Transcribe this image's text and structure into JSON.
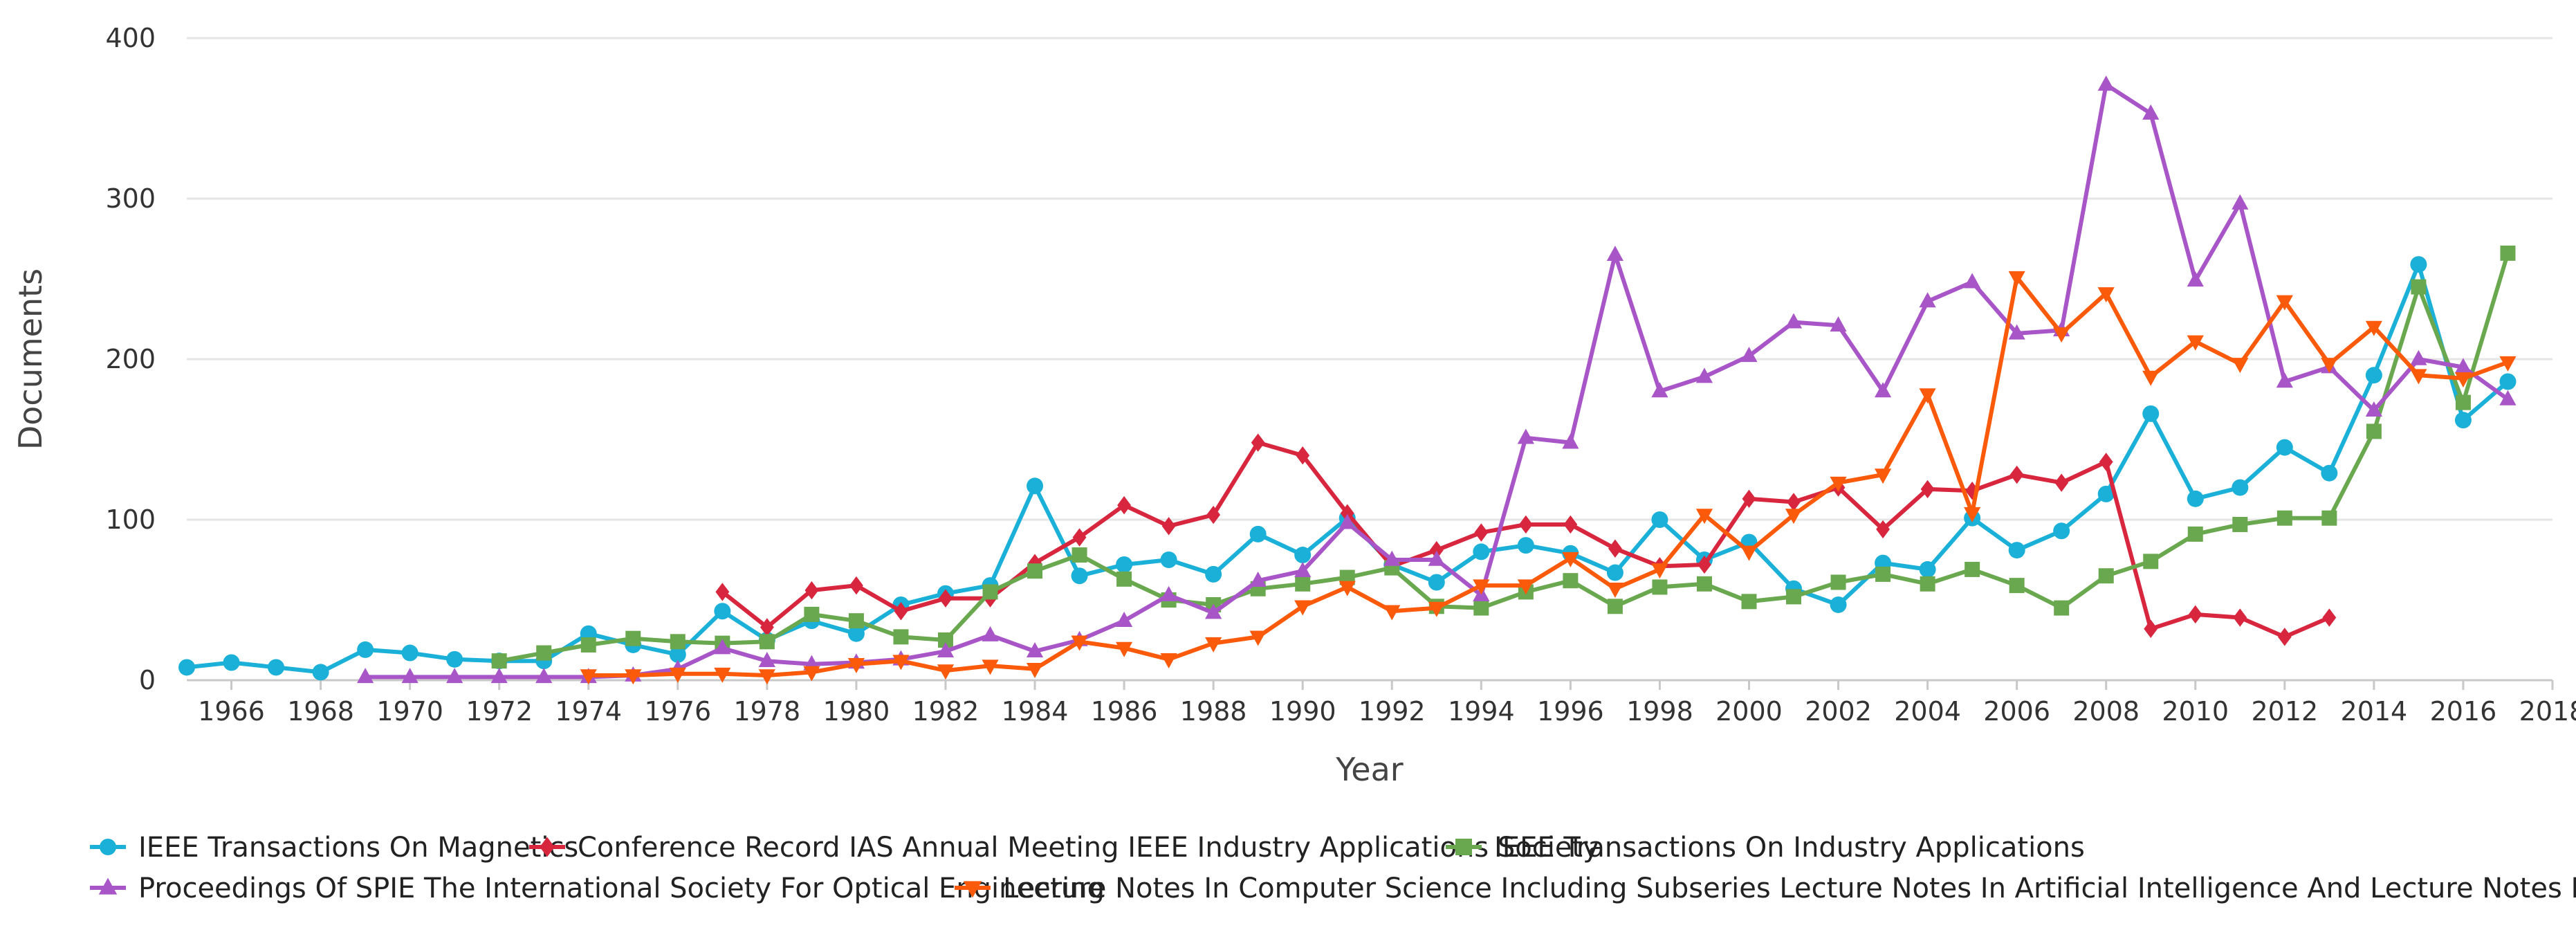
{
  "chart_data": {
    "type": "line",
    "title": "",
    "xlabel": "Year",
    "ylabel": "Documents",
    "xlim": [
      1965,
      2018
    ],
    "ylim": [
      0,
      400
    ],
    "x_ticks": [
      "1966",
      "1968",
      "1970",
      "1972",
      "1974",
      "1976",
      "1978",
      "1980",
      "1982",
      "1984",
      "1986",
      "1988",
      "1990",
      "1992",
      "1994",
      "1996",
      "1998",
      "2000",
      "2002",
      "2004",
      "2006",
      "2008",
      "2010",
      "2012",
      "2014",
      "2016",
      "2018"
    ],
    "y_ticks": [
      "0",
      "100",
      "200",
      "300",
      "400"
    ],
    "grid": true,
    "legend_position": "bottom",
    "series": [
      {
        "name": "IEEE Transactions On Magnetics",
        "color": "#1ab0d8",
        "marker": "circle",
        "x": [
          1965,
          1966,
          1967,
          1968,
          1969,
          1970,
          1971,
          1972,
          1973,
          1974,
          1975,
          1976,
          1977,
          1978,
          1979,
          1980,
          1981,
          1982,
          1983,
          1984,
          1985,
          1986,
          1987,
          1988,
          1989,
          1990,
          1991,
          1992,
          1993,
          1994,
          1995,
          1996,
          1997,
          1998,
          1999,
          2000,
          2001,
          2002,
          2003,
          2004,
          2005,
          2006,
          2007,
          2008,
          2009,
          2010,
          2011,
          2012,
          2013,
          2014,
          2015,
          2016,
          2017
        ],
        "values": [
          8,
          11,
          8,
          5,
          19,
          17,
          13,
          12,
          12,
          29,
          22,
          16,
          43,
          25,
          37,
          29,
          47,
          54,
          59,
          121,
          65,
          72,
          75,
          66,
          91,
          78,
          101,
          72,
          61,
          80,
          84,
          79,
          67,
          100,
          75,
          86,
          57,
          47,
          73,
          69,
          101,
          81,
          93,
          116,
          166,
          113,
          120,
          145,
          129,
          190,
          259,
          162,
          186
        ]
      },
      {
        "name": "Conference Record IAS Annual Meeting IEEE Industry Applications Society",
        "color": "#d7263d",
        "marker": "diamond",
        "x": [
          1977,
          1978,
          1979,
          1980,
          1981,
          1982,
          1983,
          1984,
          1985,
          1986,
          1987,
          1988,
          1989,
          1990,
          1991,
          1992,
          1993,
          1994,
          1995,
          1996,
          1997,
          1998,
          1999,
          2000,
          2001,
          2002,
          2003,
          2004,
          2005,
          2006,
          2007,
          2008,
          2009,
          2010,
          2011,
          2012,
          2013
        ],
        "values": [
          55,
          33,
          56,
          59,
          43,
          51,
          51,
          73,
          89,
          109,
          96,
          103,
          148,
          140,
          104,
          71,
          81,
          92,
          97,
          97,
          82,
          71,
          72,
          113,
          111,
          120,
          94,
          119,
          118,
          128,
          123,
          136,
          32,
          41,
          39,
          27,
          39
        ]
      },
      {
        "name": "IEEE Transactions On Industry Applications",
        "color": "#6aa84f",
        "marker": "square",
        "x": [
          1972,
          1973,
          1974,
          1975,
          1976,
          1977,
          1978,
          1979,
          1980,
          1981,
          1982,
          1983,
          1984,
          1985,
          1986,
          1987,
          1988,
          1989,
          1990,
          1991,
          1992,
          1993,
          1994,
          1995,
          1996,
          1997,
          1998,
          1999,
          2000,
          2001,
          2002,
          2003,
          2004,
          2005,
          2006,
          2007,
          2008,
          2009,
          2010,
          2011,
          2012,
          2013,
          2014,
          2015,
          2016,
          2017
        ],
        "values": [
          12,
          17,
          22,
          26,
          24,
          23,
          24,
          41,
          37,
          27,
          25,
          55,
          68,
          78,
          63,
          50,
          47,
          57,
          60,
          64,
          70,
          46,
          45,
          55,
          62,
          46,
          58,
          60,
          49,
          52,
          61,
          66,
          60,
          69,
          59,
          45,
          65,
          74,
          91,
          97,
          101,
          101,
          155,
          245,
          173,
          266
        ]
      },
      {
        "name": "Proceedings Of SPIE The International Society For Optical Engineering",
        "color": "#a855c7",
        "marker": "triangle",
        "x": [
          1969,
          1970,
          1971,
          1972,
          1973,
          1974,
          1975,
          1976,
          1977,
          1978,
          1979,
          1980,
          1981,
          1982,
          1983,
          1984,
          1985,
          1986,
          1987,
          1988,
          1989,
          1990,
          1991,
          1992,
          1993,
          1994,
          1995,
          1996,
          1997,
          1998,
          1999,
          2000,
          2001,
          2002,
          2003,
          2004,
          2005,
          2006,
          2007,
          2008,
          2009,
          2010,
          2011,
          2012,
          2013,
          2014,
          2015,
          2016,
          2017
        ],
        "values": [
          2,
          2,
          2,
          2,
          2,
          2,
          3,
          7,
          20,
          12,
          10,
          11,
          13,
          18,
          28,
          18,
          25,
          37,
          53,
          42,
          62,
          68,
          98,
          75,
          75,
          53,
          151,
          148,
          265,
          180,
          189,
          202,
          223,
          221,
          180,
          236,
          248,
          216,
          218,
          371,
          353,
          249,
          297,
          186,
          195,
          168,
          200,
          195,
          175
        ]
      },
      {
        "name": "Lecture Notes In Computer Science Including Subseries Lecture Notes In Artificial Intelligence And Lecture Notes In Bioinformatics",
        "color": "#fa5a0a",
        "marker": "triangle-down",
        "x": [
          1974,
          1975,
          1976,
          1977,
          1978,
          1979,
          1980,
          1981,
          1982,
          1983,
          1984,
          1985,
          1986,
          1987,
          1988,
          1989,
          1990,
          1991,
          1992,
          1993,
          1994,
          1995,
          1996,
          1997,
          1998,
          1999,
          2000,
          2001,
          2002,
          2003,
          2004,
          2005,
          2006,
          2007,
          2008,
          2009,
          2010,
          2011,
          2012,
          2013,
          2014,
          2015,
          2016,
          2017
        ],
        "values": [
          3,
          3,
          4,
          4,
          3,
          5,
          10,
          12,
          6,
          9,
          7,
          24,
          20,
          13,
          23,
          27,
          46,
          58,
          43,
          45,
          59,
          59,
          76,
          57,
          69,
          103,
          80,
          103,
          123,
          128,
          178,
          104,
          251,
          216,
          241,
          189,
          211,
          197,
          236,
          197,
          220,
          190,
          188,
          198
        ]
      }
    ]
  }
}
